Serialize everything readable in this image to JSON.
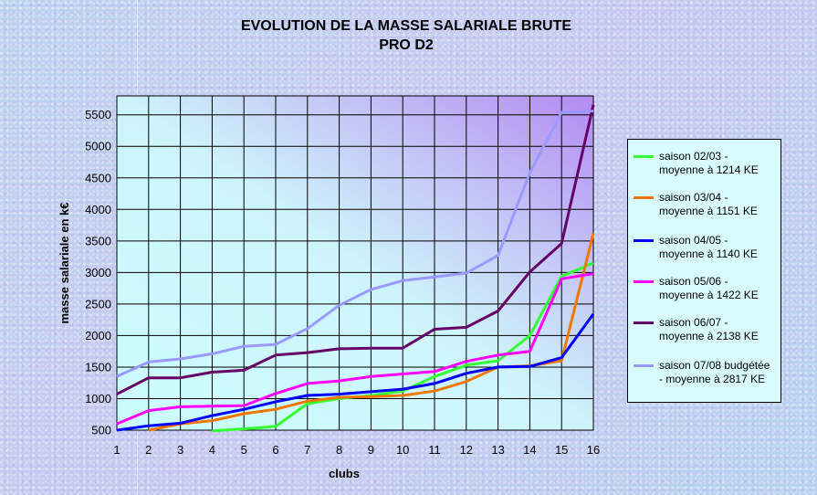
{
  "title": {
    "line1": "EVOLUTION DE LA MASSE SALARIALE BRUTE",
    "line2": "PRO D2"
  },
  "chart_data": {
    "type": "line",
    "title": "EVOLUTION DE LA MASSE SALARIALE BRUTE PRO D2",
    "xlabel": "clubs",
    "ylabel": "masse salariale en k€",
    "x": [
      1,
      2,
      3,
      4,
      5,
      6,
      7,
      8,
      9,
      10,
      11,
      12,
      13,
      14,
      15,
      16
    ],
    "xlim": [
      1,
      16
    ],
    "ylim": [
      500,
      5800
    ],
    "yticks": [
      500,
      1000,
      1500,
      2000,
      2500,
      3000,
      3500,
      4000,
      4500,
      5000,
      5500
    ],
    "grid": true,
    "legend_position": "right",
    "series": [
      {
        "name": "saison 02/03 -\nmoyenne à 1214 KE",
        "color": "#33ff33",
        "values": [
          null,
          null,
          null,
          490,
          520,
          560,
          920,
          1000,
          1050,
          1120,
          1350,
          1530,
          1600,
          2000,
          2940,
          3150
        ]
      },
      {
        "name": "saison 03/04 -\nmoyenne à 1151 KE",
        "color": "#f07800",
        "values": [
          null,
          500,
          600,
          650,
          760,
          830,
          960,
          1020,
          1030,
          1050,
          1120,
          1270,
          1500,
          1520,
          1600,
          3620
        ]
      },
      {
        "name": "saison 04/05 -\nmoyenne à 1140 KE",
        "color": "#0000ff",
        "values": [
          500,
          570,
          610,
          730,
          830,
          950,
          1050,
          1070,
          1110,
          1150,
          1240,
          1400,
          1500,
          1510,
          1650,
          2340
        ]
      },
      {
        "name": "saison 05/06 -\nmoyenne à 1422 KE",
        "color": "#ff00ff",
        "values": [
          600,
          810,
          870,
          880,
          890,
          1080,
          1240,
          1280,
          1350,
          1390,
          1430,
          1590,
          1690,
          1750,
          2900,
          2980
        ]
      },
      {
        "name": "saison 06/07 -\nmoyenne à 2138 KE",
        "color": "#660066",
        "values": [
          1070,
          1330,
          1330,
          1420,
          1450,
          1690,
          1730,
          1790,
          1800,
          1800,
          2100,
          2130,
          2390,
          3010,
          3460,
          5660
        ]
      },
      {
        "name": "saison 07/08 budgétée\n- moyenne à 2817 KE",
        "color": "#9999ff",
        "values": [
          1350,
          1580,
          1630,
          1710,
          1830,
          1860,
          2110,
          2480,
          2730,
          2870,
          2930,
          2990,
          3270,
          4580,
          5540,
          5560
        ]
      }
    ]
  }
}
